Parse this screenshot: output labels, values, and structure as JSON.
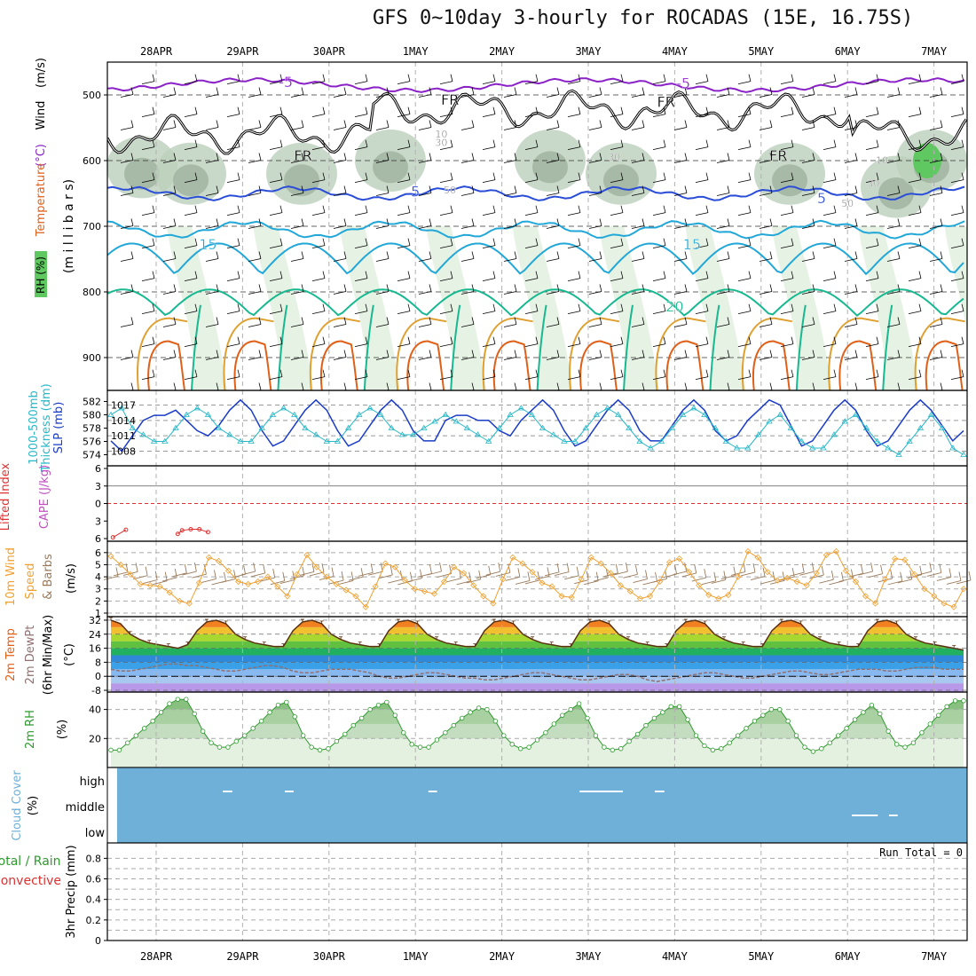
{
  "title": "GFS 0~10day 3-hourly for ROCADAS (15E, 16.75S)",
  "colors": {
    "purple": "#8a22c8",
    "black": "#000000",
    "blue": "#2a4dd8",
    "cyan": "#22a8d8",
    "teal": "#18b890",
    "orange": "#e0a030",
    "deeporange": "#e06018",
    "magenta": "#d0106a",
    "rh_light": "#e6f2e4",
    "rh_mid": "#bccfbc",
    "rh_dark": "#98ab98",
    "rh_green": "#60c860",
    "slp": "#1a3cc8",
    "thick": "#28b8c8",
    "wind10": "#f0a030",
    "barb10": "#9a7a5a",
    "lifted": "#e03030",
    "cloud": "#6fb0d8",
    "rh2m": "#2e9a2e",
    "dewpt": "#907070"
  },
  "date_labels": [
    "28APR",
    "29APR",
    "30APR",
    "1MAY",
    "2MAY",
    "3MAY",
    "4MAY",
    "5MAY",
    "6MAY",
    "7MAY"
  ],
  "panel_labels": {
    "p1": [
      {
        "text": "Wind",
        "color": "#000"
      },
      {
        "text": "(m/s)",
        "color": "#000"
      },
      {
        "text": "(°C)",
        "color": "#8a22c8"
      },
      {
        "text": "Temperature",
        "color": "#e06018"
      },
      {
        "text": "RH (%)",
        "color": "#000"
      },
      {
        "text": "(m i l l i b a r s)",
        "color": "#000"
      }
    ],
    "p2": [
      {
        "text": "1000-500mb",
        "color": "#28b8c8"
      },
      {
        "text": "Thickness (dm)",
        "color": "#28b8c8"
      },
      {
        "text": "SLP (mb)",
        "color": "#1a3cc8"
      }
    ],
    "p3": [
      {
        "text": "Lifted Index",
        "color": "#e03030"
      },
      {
        "text": "CAPE (J/kg)",
        "color": "#c050c0"
      }
    ],
    "p4": [
      {
        "text": "10m Wind",
        "color": "#f0a030"
      },
      {
        "text": "Speed",
        "color": "#f0a030"
      },
      {
        "text": "& Barbs",
        "color": "#9a7a5a"
      },
      {
        "text": "(m/s)",
        "color": "#000"
      }
    ],
    "p5": [
      {
        "text": "2m Temp",
        "color": "#e06018"
      },
      {
        "text": "2m DewPt",
        "color": "#907070"
      },
      {
        "text": "(6hr Min/Max)",
        "color": "#000"
      },
      {
        "text": "(°C)",
        "color": "#000"
      }
    ],
    "p6": [
      {
        "text": "2m RH",
        "color": "#2e9a2e"
      },
      {
        "text": "(%)",
        "color": "#000"
      }
    ],
    "p7": [
      {
        "text": "Cloud Cover",
        "color": "#6fb0d8"
      },
      {
        "text": "(%)",
        "color": "#000"
      }
    ],
    "p8": [
      {
        "text": "Total / Rain",
        "color": "#2e9a2e"
      },
      {
        "text": "Convective",
        "color": "#e03030"
      },
      {
        "text": "3hr Precip (mm)",
        "color": "#000"
      }
    ]
  },
  "run_total": "Run Total = 0",
  "chart_data": [
    {
      "type": "heatmap",
      "name": "pressure-cross-section",
      "y_axis": {
        "ticks": [
          500,
          600,
          700,
          800,
          900
        ],
        "range": [
          450,
          950
        ],
        "reversed": true
      },
      "contour_labels": [
        {
          "text": "-5",
          "color": "#8a22c8",
          "day": 1.5,
          "p": 488
        },
        {
          "text": "-5",
          "color": "#8a22c8",
          "day": 6.1,
          "p": 490
        },
        {
          "text": "FR",
          "color": "#000",
          "day": 1.7,
          "p": 600
        },
        {
          "text": "FR",
          "color": "#000",
          "day": 3.4,
          "p": 515
        },
        {
          "text": "FR",
          "color": "#000",
          "day": 5.9,
          "p": 518
        },
        {
          "text": "FR",
          "color": "#000",
          "day": 7.2,
          "p": 600
        },
        {
          "text": "5",
          "color": "#2a4dd8",
          "day": 3.0,
          "p": 655
        },
        {
          "text": "5",
          "color": "#2a4dd8",
          "day": 7.7,
          "p": 665
        },
        {
          "text": "15",
          "color": "#22a8d8",
          "day": 0.6,
          "p": 735
        },
        {
          "text": "15",
          "color": "#22a8d8",
          "day": 6.2,
          "p": 735
        },
        {
          "text": "20",
          "color": "#18b890",
          "day": 6.0,
          "p": 830
        },
        {
          "text": "10",
          "color": "#888",
          "day": 3.3,
          "p": 565
        },
        {
          "text": "30",
          "color": "#888",
          "day": 3.3,
          "p": 578
        },
        {
          "text": "50",
          "color": "#888",
          "day": 3.4,
          "p": 650
        },
        {
          "text": "30",
          "color": "#888",
          "day": 5.3,
          "p": 600
        },
        {
          "text": "10",
          "color": "#888",
          "day": 8.4,
          "p": 605
        },
        {
          "text": "30",
          "color": "#888",
          "day": 8.3,
          "p": 640
        },
        {
          "text": "50",
          "color": "#888",
          "day": 8.0,
          "p": 670
        }
      ]
    },
    {
      "type": "line",
      "name": "slp-thickness",
      "y_left": {
        "ticks": [
          574,
          576,
          578,
          580,
          582
        ],
        "range": [
          573,
          583
        ]
      },
      "y_right": {
        "ticks": [
          1008,
          1011,
          1014,
          1017
        ],
        "range": [
          1006,
          1019
        ]
      },
      "x_step_hours": 3,
      "series": [
        {
          "name": "SLP",
          "axis": "right",
          "values": [
            1010,
            1008,
            1011,
            1014,
            1015,
            1015,
            1016,
            1014,
            1012,
            1011,
            1013,
            1016,
            1018,
            1016,
            1012,
            1009,
            1010,
            1013,
            1016,
            1018,
            1016,
            1012,
            1009,
            1010,
            1013,
            1016,
            1018,
            1016,
            1012,
            1010,
            1010,
            1014,
            1015,
            1015,
            1014,
            1014,
            1012,
            1011,
            1014,
            1016,
            1018,
            1016,
            1012,
            1009,
            1010,
            1013,
            1016,
            1018,
            1016,
            1012,
            1010,
            1010,
            1013,
            1016,
            1018,
            1016,
            1012,
            1010,
            1011,
            1014,
            1016,
            1018,
            1017,
            1013,
            1009,
            1010,
            1013,
            1016,
            1018,
            1016,
            1012,
            1009,
            1010,
            1013,
            1016,
            1018,
            1016,
            1013,
            1010,
            1012
          ]
        },
        {
          "name": "Thickness",
          "axis": "left",
          "values": [
            580,
            581,
            578,
            577,
            576,
            576,
            578,
            580,
            581,
            580,
            578,
            577,
            576,
            576,
            578,
            580,
            581,
            580,
            578,
            577,
            576,
            576,
            578,
            580,
            581,
            580,
            578,
            577,
            577,
            578,
            579,
            580,
            579,
            578,
            577,
            576,
            578,
            580,
            581,
            580,
            578,
            577,
            576,
            576,
            578,
            580,
            581,
            580,
            578,
            576,
            575,
            576,
            578,
            580,
            581,
            580,
            578,
            576,
            575,
            575,
            577,
            579,
            580,
            578,
            576,
            575,
            575,
            577,
            579,
            580,
            578,
            576,
            575,
            574,
            576,
            578,
            580,
            578,
            575,
            574
          ]
        }
      ]
    },
    {
      "type": "line",
      "name": "lifted-index-cape",
      "y_axis": {
        "ticks": [
          -6,
          -3,
          0,
          3,
          6
        ],
        "tick_labels": [
          "6",
          "3",
          "0",
          "3",
          "6"
        ],
        "range": [
          -6,
          6
        ]
      },
      "series": [
        {
          "name": "Lifted Index",
          "points": [
            [
              0.05,
              5.8
            ],
            [
              0.2,
              4.5
            ],
            [
              0.8,
              5.2
            ],
            [
              0.85,
              4.6
            ],
            [
              0.95,
              4.4
            ],
            [
              1.05,
              4.4
            ],
            [
              1.15,
              4.9
            ]
          ]
        }
      ]
    },
    {
      "type": "line",
      "name": "wind10m",
      "y_axis": {
        "ticks": [
          1,
          2,
          3,
          4,
          5,
          6
        ],
        "range": [
          1,
          6.5
        ]
      },
      "series": [
        {
          "name": "10m Wind Speed",
          "values": [
            5.7,
            5,
            4.2,
            3.4,
            3.3,
            3.2,
            2.7,
            2,
            1.8,
            3.5,
            5.6,
            5.3,
            4.5,
            3.6,
            3.4,
            3.6,
            4,
            3.2,
            2.4,
            4.2,
            5.8,
            4.8,
            4,
            3.4,
            2.9,
            2.4,
            1.5,
            3.2,
            5.1,
            4.8,
            3.7,
            3,
            2.8,
            2.6,
            3.6,
            4.8,
            4.3,
            3.3,
            2.4,
            1.8,
            3.8,
            5.6,
            5.1,
            4.4,
            3.5,
            3.2,
            2.4,
            2.3,
            3.8,
            5.6,
            5.1,
            4.3,
            3.3,
            2.8,
            2.2,
            2.4,
            3.6,
            5.2,
            5.5,
            4.4,
            3.3,
            2.5,
            2.2,
            2.5,
            4,
            6.1,
            5.6,
            4.4,
            3.7,
            3.9,
            3.6,
            3.3,
            4.3,
            5.8,
            6.1,
            4.5,
            3.6,
            2.4,
            1.8,
            3.8,
            5.5,
            5.4,
            4.2,
            3,
            2.4,
            1.8,
            1.5,
            3
          ]
        }
      ]
    },
    {
      "type": "area",
      "name": "temp2m",
      "y_axis": {
        "ticks": [
          -8,
          0,
          8,
          16,
          24,
          32
        ],
        "tick_labels": [
          "-8",
          "0",
          "8",
          "16",
          "24",
          "32"
        ],
        "range": [
          -9,
          34
        ]
      },
      "series": [
        {
          "name": "2m Temp",
          "values": [
            32,
            30,
            24,
            21,
            19,
            18,
            17,
            16,
            18,
            26,
            31,
            32,
            30,
            24,
            21,
            19,
            18,
            17,
            17,
            26,
            31,
            32,
            30,
            24,
            21,
            19,
            18,
            17,
            17,
            26,
            31,
            32,
            30,
            24,
            21,
            19,
            18,
            17,
            17,
            26,
            31,
            32,
            30,
            24,
            21,
            19,
            18,
            17,
            17,
            26,
            31,
            32,
            30,
            24,
            21,
            19,
            18,
            17,
            17,
            26,
            31,
            32,
            30,
            24,
            21,
            19,
            18,
            17,
            17,
            26,
            31,
            32,
            30,
            24,
            21,
            19,
            18,
            17,
            17,
            26,
            31,
            32,
            30,
            24,
            21,
            19,
            18,
            17,
            16,
            15
          ]
        },
        {
          "name": "2m DewPt",
          "values": [
            4,
            3,
            3,
            4,
            5,
            6,
            7,
            7,
            6,
            6,
            5,
            4,
            3,
            3,
            4,
            5,
            6,
            6,
            5,
            3,
            2,
            2,
            3,
            4,
            4,
            4,
            3,
            2,
            0,
            -1,
            -1,
            0,
            1,
            2,
            2,
            1,
            0,
            -1,
            -1,
            -2,
            -2,
            -1,
            0,
            1,
            2,
            2,
            1,
            0,
            -1,
            -2,
            -2,
            -1,
            0,
            1,
            1,
            0,
            -2,
            -3,
            -2,
            -1,
            0,
            1,
            2,
            2,
            1,
            0,
            -1,
            -1,
            0,
            1,
            2,
            3,
            3,
            2,
            1,
            1,
            2,
            3,
            4,
            4,
            4,
            3,
            3,
            4,
            5,
            5,
            5,
            4,
            4,
            4
          ]
        }
      ]
    },
    {
      "type": "area",
      "name": "rh2m",
      "y_axis": {
        "ticks": [
          20,
          40
        ],
        "range": [
          0,
          52
        ]
      },
      "series": [
        {
          "name": "2m RH",
          "values": [
            12,
            12,
            17,
            22,
            27,
            32,
            38,
            44,
            47,
            47,
            37,
            25,
            17,
            14,
            14,
            18,
            22,
            27,
            32,
            38,
            43,
            45,
            35,
            22,
            14,
            12,
            13,
            18,
            23,
            29,
            34,
            40,
            43,
            45,
            36,
            24,
            16,
            14,
            14,
            19,
            24,
            29,
            34,
            38,
            41,
            40,
            32,
            22,
            16,
            13,
            14,
            19,
            24,
            30,
            36,
            40,
            44,
            34,
            22,
            14,
            12,
            13,
            18,
            23,
            29,
            34,
            38,
            42,
            42,
            33,
            22,
            15,
            12,
            13,
            17,
            22,
            27,
            32,
            36,
            40,
            40,
            32,
            22,
            14,
            11,
            13,
            17,
            22,
            27,
            33,
            38,
            43,
            37,
            25,
            16,
            14,
            17,
            24,
            30,
            36,
            42,
            46,
            46
          ]
        }
      ]
    },
    {
      "type": "heatmap",
      "name": "cloud-cover",
      "y_axis": {
        "tick_labels": [
          "high",
          "middle",
          "low"
        ]
      },
      "breaks": [
        {
          "level": "high",
          "from": 1.32,
          "to": 1.43
        },
        {
          "level": "high",
          "from": 2.04,
          "to": 2.14
        },
        {
          "level": "high",
          "from": 3.7,
          "to": 3.8
        },
        {
          "level": "high",
          "from": 5.45,
          "to": 5.95
        },
        {
          "level": "high",
          "from": 6.32,
          "to": 6.43
        },
        {
          "level": "middle",
          "from": 8.6,
          "to": 8.9
        },
        {
          "level": "middle",
          "from": 9.03,
          "to": 9.13
        }
      ]
    },
    {
      "type": "bar",
      "name": "precip3hr",
      "y_axis": {
        "ticks": [
          0,
          0.2,
          0.4,
          0.6,
          0.8
        ],
        "tick_labels": [
          "0",
          "0.2",
          "0.4",
          "0.6",
          "0.8"
        ],
        "range": [
          0,
          0.95
        ]
      },
      "values": []
    }
  ]
}
